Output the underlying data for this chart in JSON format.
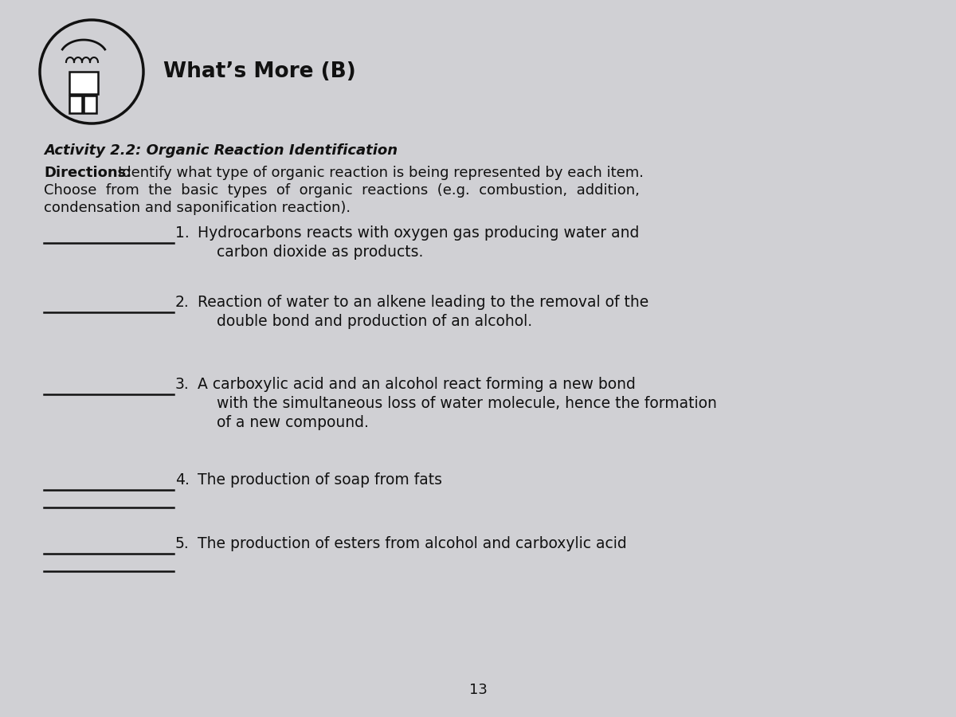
{
  "bg_color": "#d0d0d4",
  "title": "What’s More (B)",
  "title_fontsize": 19,
  "activity_title": "Activity 2.2: Organic Reaction Identification",
  "directions_label": "Directions:",
  "directions_body": "Identify what type of organic reaction is being represented by each item.\nChoose  from  the  basic  types  of  organic  reactions  (e.g.  combustion,  addition,\ncondensation and saponification reaction).",
  "items": [
    {
      "number": "1.",
      "line1": "Hydrocarbons reacts with oxygen gas producing water and",
      "line2": "    carbon dioxide as products.",
      "line3": ""
    },
    {
      "number": "2.",
      "line1": "Reaction of water to an alkene leading to the removal of the",
      "line2": "    double bond and production of an alcohol.",
      "line3": ""
    },
    {
      "number": "3.",
      "line1": "A carboxylic acid and an alcohol react forming a new bond",
      "line2": "    with the simultaneous loss of water molecule, hence the formation",
      "line3": "    of a new compound."
    },
    {
      "number": "4.",
      "line1": "The production of soap from fats",
      "line2": "",
      "line3": ""
    },
    {
      "number": "5.",
      "line1": "The production of esters from alcohol and carboxylic acid",
      "line2": "",
      "line3": ""
    }
  ],
  "page_number": "13",
  "text_color": "#111111",
  "line_color": "#111111"
}
